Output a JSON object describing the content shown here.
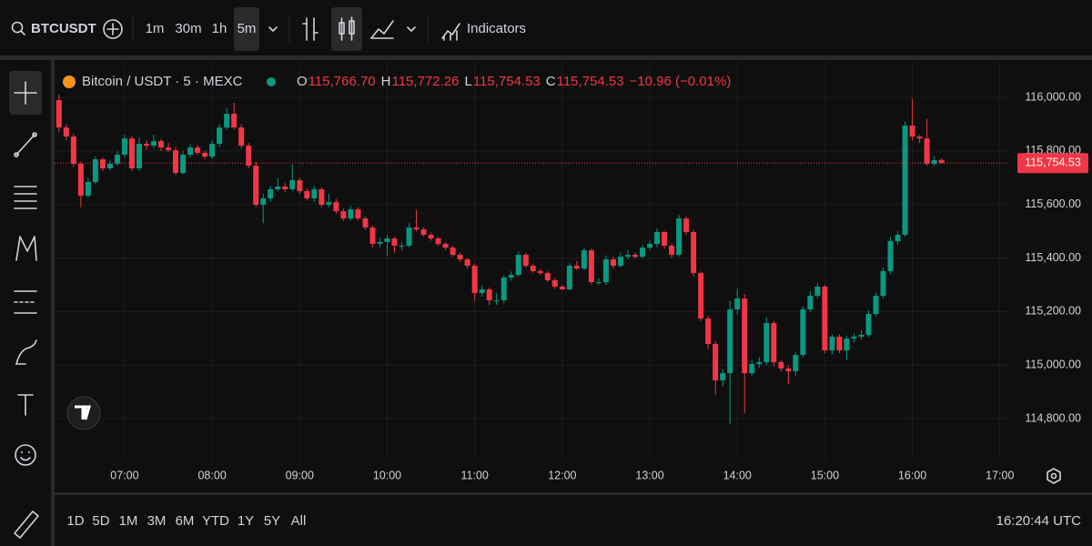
{
  "toolbar": {
    "symbol": "BTCUSDT",
    "intervals": [
      "1m",
      "30m",
      "1h",
      "5m"
    ],
    "active_interval_index": 3,
    "indicators": "Indicators"
  },
  "legend": {
    "title": "Bitcoin / USDT · 5 · MEXC",
    "fields": [
      {
        "label": "O",
        "value": "115,766.70"
      },
      {
        "label": "H",
        "value": "115,772.26"
      },
      {
        "label": "L",
        "value": "115,754.53"
      },
      {
        "label": "C",
        "value": "115,754.53"
      }
    ],
    "change": "−10.96 (−0.01%)"
  },
  "chart_data": {
    "type": "candlestick",
    "up_color": "#089981",
    "down_color": "#f23645",
    "grid": true,
    "xlim": [
      "06:12",
      "17:07"
    ],
    "xticks": [
      "07:00",
      "08:00",
      "09:00",
      "10:00",
      "11:00",
      "12:00",
      "13:00",
      "14:00",
      "15:00",
      "16:00",
      "17:00"
    ],
    "ylim": [
      114647,
      116133
    ],
    "yticks": [
      {
        "value": 114800,
        "label": "114,800.00"
      },
      {
        "value": 115000,
        "label": "115,000.00"
      },
      {
        "value": 115200,
        "label": "115,200.00"
      },
      {
        "value": 115400,
        "label": "115,400.00"
      },
      {
        "value": 115600,
        "label": "115,600.00"
      },
      {
        "value": 115800,
        "label": "115,800.00"
      },
      {
        "value": 116000,
        "label": "116,000.00"
      }
    ],
    "last_price": {
      "value": 115754.53,
      "label": "115,754.53"
    },
    "x": [
      "06:15",
      "06:20",
      "06:25",
      "06:30",
      "06:35",
      "06:40",
      "06:45",
      "06:50",
      "06:55",
      "07:00",
      "07:05",
      "07:10",
      "07:15",
      "07:20",
      "07:25",
      "07:30",
      "07:35",
      "07:40",
      "07:45",
      "07:50",
      "07:55",
      "08:00",
      "08:05",
      "08:10",
      "08:15",
      "08:20",
      "08:25",
      "08:30",
      "08:35",
      "08:40",
      "08:45",
      "08:50",
      "08:55",
      "09:00",
      "09:05",
      "09:10",
      "09:15",
      "09:20",
      "09:25",
      "09:30",
      "09:35",
      "09:40",
      "09:45",
      "09:50",
      "09:55",
      "10:00",
      "10:05",
      "10:10",
      "10:15",
      "10:20",
      "10:25",
      "10:30",
      "10:35",
      "10:40",
      "10:45",
      "10:50",
      "10:55",
      "11:00",
      "11:05",
      "11:10",
      "11:15",
      "11:20",
      "11:25",
      "11:30",
      "11:35",
      "11:40",
      "11:45",
      "11:50",
      "11:55",
      "12:00",
      "12:05",
      "12:10",
      "12:15",
      "12:20",
      "12:25",
      "12:30",
      "12:35",
      "12:40",
      "12:45",
      "12:50",
      "12:55",
      "13:00",
      "13:05",
      "13:10",
      "13:15",
      "13:20",
      "13:25",
      "13:30",
      "13:35",
      "13:40",
      "13:45",
      "13:50",
      "13:55",
      "14:00",
      "14:05",
      "14:10",
      "14:15",
      "14:20",
      "14:25",
      "14:30",
      "14:35",
      "14:40",
      "14:45",
      "14:50",
      "14:55",
      "15:00",
      "15:05",
      "15:10",
      "15:15",
      "15:20",
      "15:25",
      "15:30",
      "15:35",
      "15:40",
      "15:45",
      "15:50",
      "15:55",
      "16:00",
      "16:05",
      "16:10",
      "16:15",
      "16:20"
    ],
    "open": [
      115990,
      115888,
      115854,
      115752,
      115633,
      115684,
      115769,
      115735,
      115752,
      115786,
      115847,
      115735,
      115827,
      115820,
      115837,
      115813,
      115803,
      115718,
      115786,
      115813,
      115793,
      115779,
      115827,
      115888,
      115939,
      115888,
      115820,
      115745,
      115599,
      115623,
      115657,
      115667,
      115657,
      115691,
      115650,
      115623,
      115657,
      115599,
      115609,
      115575,
      115548,
      115582,
      115548,
      115514,
      115453,
      115460,
      115473,
      115446,
      115446,
      115514,
      115507,
      115487,
      115473,
      115453,
      115439,
      115412,
      115395,
      115371,
      115269,
      115283,
      115242,
      115242,
      115327,
      115337,
      115412,
      115371,
      115351,
      115344,
      115317,
      115293,
      115283,
      115371,
      115361,
      115429,
      115310,
      115310,
      115395,
      115371,
      115405,
      115412,
      115405,
      115439,
      115453,
      115497,
      115446,
      115412,
      115548,
      115497,
      115344,
      115174,
      115079,
      114943,
      114970,
      115208,
      115249,
      114970,
      115004,
      115011,
      115157,
      115011,
      114987,
      114977,
      115038,
      115208,
      115259,
      115293,
      115055,
      115106,
      115055,
      115099,
      115106,
      115113,
      115191,
      115259,
      115351,
      115463,
      115487,
      115895,
      115854,
      115847,
      115752,
      115766.7
    ],
    "high": [
      116010,
      115900,
      115865,
      115760,
      115700,
      115780,
      115775,
      115765,
      115800,
      115860,
      115855,
      115850,
      115840,
      115860,
      115845,
      115830,
      115815,
      115800,
      115825,
      115822,
      115800,
      115840,
      115900,
      115960,
      115980,
      115900,
      115830,
      115760,
      115640,
      115670,
      115700,
      115680,
      115750,
      115700,
      115660,
      115670,
      115665,
      115640,
      115620,
      115585,
      115595,
      115590,
      115555,
      115520,
      115475,
      115485,
      115480,
      115460,
      115530,
      115580,
      115515,
      115495,
      115480,
      115460,
      115445,
      115420,
      115400,
      115380,
      115300,
      115290,
      115270,
      115335,
      115350,
      115425,
      115420,
      115380,
      115360,
      115350,
      115325,
      115300,
      115380,
      115390,
      115440,
      115435,
      115325,
      115410,
      115405,
      115420,
      115430,
      115420,
      115450,
      115465,
      115510,
      115500,
      115455,
      115560,
      115555,
      115505,
      115350,
      115185,
      115090,
      114985,
      115240,
      115285,
      115265,
      115020,
      115030,
      115180,
      115165,
      115020,
      115000,
      115050,
      115220,
      115275,
      115305,
      115300,
      115115,
      115115,
      115110,
      115120,
      115130,
      115205,
      115270,
      115365,
      115480,
      115500,
      115910,
      115995,
      115860,
      115920,
      115780,
      115772.26
    ],
    "low": [
      115870,
      115840,
      115740,
      115590,
      115625,
      115675,
      115725,
      115728,
      115745,
      115775,
      115725,
      115725,
      115805,
      115810,
      115800,
      115795,
      115710,
      115712,
      115775,
      115785,
      115770,
      115770,
      115815,
      115880,
      115880,
      115810,
      115735,
      115590,
      115530,
      115610,
      115650,
      115648,
      115650,
      115640,
      115615,
      115610,
      115590,
      115590,
      115565,
      115540,
      115540,
      115540,
      115505,
      115440,
      115440,
      115410,
      115420,
      115430,
      115440,
      115500,
      115480,
      115465,
      115445,
      115430,
      115405,
      115385,
      115360,
      115240,
      115255,
      115225,
      115225,
      115230,
      115315,
      115330,
      115365,
      115345,
      115335,
      115310,
      115285,
      115280,
      115280,
      115355,
      115355,
      115300,
      115300,
      115300,
      115360,
      115365,
      115395,
      115398,
      115400,
      115430,
      115440,
      115435,
      115400,
      115405,
      115485,
      115330,
      115165,
      115060,
      114890,
      114920,
      114780,
      115190,
      114820,
      114960,
      114990,
      115000,
      114995,
      114975,
      114930,
      114960,
      115030,
      115200,
      115250,
      115045,
      115040,
      115045,
      115020,
      115085,
      115095,
      115105,
      115180,
      115250,
      115340,
      115450,
      115480,
      115840,
      115830,
      115745,
      115745,
      115754.53
    ],
    "close": [
      115888,
      115854,
      115752,
      115633,
      115684,
      115769,
      115735,
      115752,
      115786,
      115847,
      115735,
      115827,
      115820,
      115837,
      115813,
      115803,
      115718,
      115786,
      115813,
      115793,
      115779,
      115827,
      115888,
      115939,
      115888,
      115820,
      115745,
      115599,
      115623,
      115657,
      115667,
      115657,
      115691,
      115650,
      115623,
      115657,
      115599,
      115609,
      115575,
      115548,
      115582,
      115548,
      115514,
      115453,
      115460,
      115473,
      115446,
      115446,
      115514,
      115507,
      115487,
      115473,
      115453,
      115439,
      115412,
      115395,
      115371,
      115269,
      115283,
      115242,
      115242,
      115327,
      115337,
      115412,
      115371,
      115351,
      115344,
      115317,
      115293,
      115283,
      115371,
      115361,
      115429,
      115310,
      115310,
      115395,
      115371,
      115405,
      115412,
      115405,
      115439,
      115453,
      115497,
      115446,
      115412,
      115548,
      115497,
      115344,
      115174,
      115079,
      114943,
      114970,
      115208,
      115249,
      114970,
      115004,
      115011,
      115157,
      115011,
      114987,
      114977,
      115038,
      115208,
      115259,
      115293,
      115055,
      115106,
      115055,
      115099,
      115106,
      115113,
      115191,
      115259,
      115351,
      115463,
      115487,
      115895,
      115854,
      115847,
      115752,
      115765.49,
      115754.53
    ]
  },
  "range_bar": {
    "ranges": [
      "1D",
      "5D",
      "1M",
      "3M",
      "6M",
      "YTD",
      "1Y",
      "5Y",
      "All"
    ],
    "clock": "16:20:44 UTC"
  }
}
